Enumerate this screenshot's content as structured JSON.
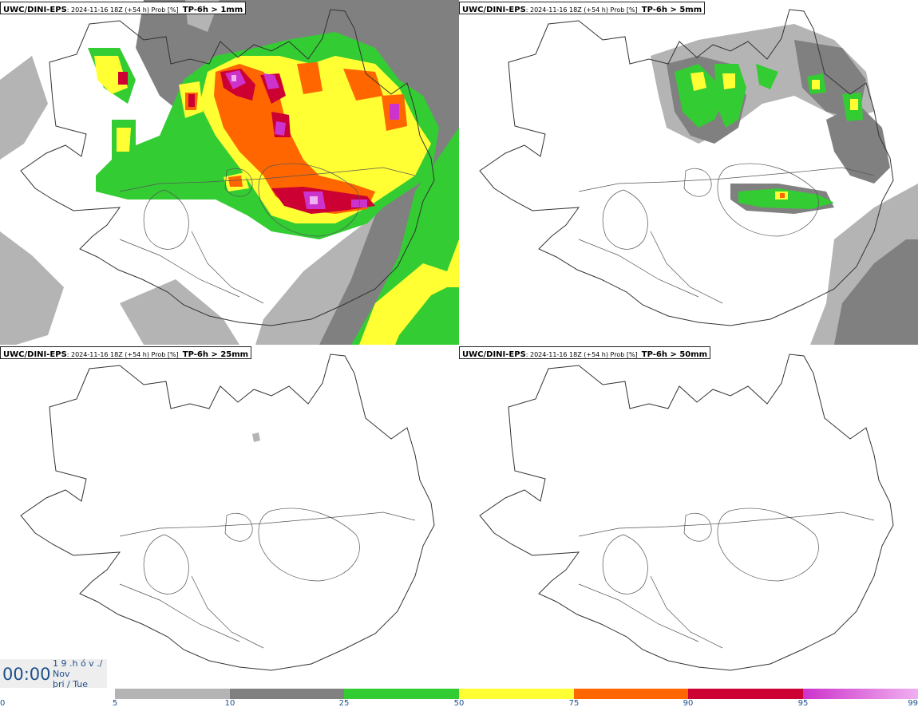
{
  "panels": [
    {
      "model": "UWC/DINI-EPS",
      "meta": ": 2024-11-16 18Z (+54 h) Prob [%]",
      "field": "TP-6h > 1mm"
    },
    {
      "model": "UWC/DINI-EPS",
      "meta": ": 2024-11-16 18Z (+54 h) Prob [%]",
      "field": "TP-6h > 5mm"
    },
    {
      "model": "UWC/DINI-EPS",
      "meta": ": 2024-11-16 18Z (+54 h) Prob [%]",
      "field": "TP-6h > 25mm"
    },
    {
      "model": "UWC/DINI-EPS",
      "meta": ": 2024-11-16 18Z (+54 h) Prob [%]",
      "field": "TP-6h > 50mm"
    }
  ],
  "time": {
    "clock": "00:00",
    "line1": "1 9 .h ó v ./",
    "line2": "Nov",
    "line3": "þri / Tue"
  },
  "colorbar": {
    "ticks": [
      "0",
      "5",
      "10",
      "25",
      "50",
      "75",
      "90",
      "95",
      "99"
    ],
    "colors": {
      "5-10": "#b4b4b4",
      "10-25": "#808080",
      "25-50": "#33cc33",
      "50-75": "#ffff33",
      "75-90": "#ff6600",
      "90-95": "#cc0033",
      "95-99": "#cc33cc",
      "99+": "#f0b0f0"
    }
  }
}
